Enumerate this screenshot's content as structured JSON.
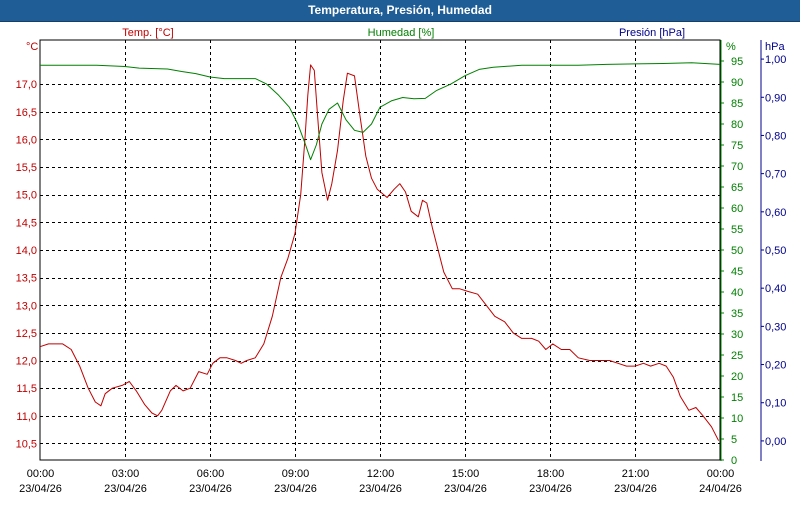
{
  "window": {
    "title": "Temperatura, Presión, Humedad"
  },
  "chart_data": {
    "type": "line",
    "title": "Temperatura, Presión, Humedad",
    "x_ticks": [
      {
        "time": "00:00",
        "date": "23/04/26"
      },
      {
        "time": "03:00",
        "date": "23/04/26"
      },
      {
        "time": "06:00",
        "date": "23/04/26"
      },
      {
        "time": "09:00",
        "date": "23/04/26"
      },
      {
        "time": "12:00",
        "date": "23/04/26"
      },
      {
        "time": "15:00",
        "date": "23/04/26"
      },
      {
        "time": "18:00",
        "date": "23/04/26"
      },
      {
        "time": "21:00",
        "date": "23/04/26"
      },
      {
        "time": "00:00",
        "date": "24/04/26"
      }
    ],
    "x_range_hours": [
      0,
      24
    ],
    "axes": {
      "temp": {
        "label": "Temp. [°C]",
        "unit": "°C",
        "color": "#c00000",
        "range": [
          10.2,
          17.8
        ],
        "ticks": [
          "10,5",
          "11,0",
          "11,5",
          "12,0",
          "12,5",
          "13,0",
          "13,5",
          "14,0",
          "14,5",
          "15,0",
          "15,5",
          "16,0",
          "16,5",
          "17,0"
        ]
      },
      "humidity": {
        "label": "Humedad [%]",
        "unit": "%",
        "color": "#008000",
        "range": [
          0,
          100
        ],
        "ticks": [
          "0",
          "5",
          "10",
          "15",
          "20",
          "25",
          "30",
          "35",
          "40",
          "45",
          "50",
          "55",
          "60",
          "65",
          "70",
          "75",
          "80",
          "85",
          "90",
          "95"
        ]
      },
      "pressure": {
        "label": "Presión [hPa]",
        "unit": "hPa",
        "color": "#00008b",
        "range": [
          -0.05,
          1.05
        ],
        "ticks": [
          "0,00",
          "0,10",
          "0,20",
          "0,30",
          "0,40",
          "0,50",
          "0,60",
          "0,70",
          "0,80",
          "0,90",
          "1,00"
        ]
      }
    },
    "grid": true,
    "series": [
      {
        "name": "Temp. [°C]",
        "axis": "temp",
        "color": "#c00000",
        "points": [
          [
            0,
            12.25
          ],
          [
            0.3,
            12.3
          ],
          [
            0.8,
            12.3
          ],
          [
            1.1,
            12.2
          ],
          [
            1.4,
            11.9
          ],
          [
            1.7,
            11.5
          ],
          [
            1.95,
            11.25
          ],
          [
            2.15,
            11.18
          ],
          [
            2.3,
            11.4
          ],
          [
            2.55,
            11.5
          ],
          [
            2.9,
            11.55
          ],
          [
            3.15,
            11.62
          ],
          [
            3.4,
            11.45
          ],
          [
            3.7,
            11.2
          ],
          [
            3.95,
            11.05
          ],
          [
            4.15,
            11.0
          ],
          [
            4.3,
            11.1
          ],
          [
            4.6,
            11.45
          ],
          [
            4.8,
            11.55
          ],
          [
            5.05,
            11.45
          ],
          [
            5.3,
            11.5
          ],
          [
            5.6,
            11.8
          ],
          [
            5.9,
            11.75
          ],
          [
            6.1,
            11.95
          ],
          [
            6.35,
            12.05
          ],
          [
            6.6,
            12.05
          ],
          [
            6.9,
            12.0
          ],
          [
            7.1,
            11.95
          ],
          [
            7.3,
            12.0
          ],
          [
            7.6,
            12.05
          ],
          [
            7.9,
            12.3
          ],
          [
            8.2,
            12.8
          ],
          [
            8.5,
            13.5
          ],
          [
            8.75,
            13.85
          ],
          [
            9.0,
            14.3
          ],
          [
            9.2,
            15.0
          ],
          [
            9.35,
            16.0
          ],
          [
            9.45,
            16.8
          ],
          [
            9.55,
            17.35
          ],
          [
            9.68,
            17.25
          ],
          [
            9.8,
            16.4
          ],
          [
            9.95,
            15.4
          ],
          [
            10.15,
            14.9
          ],
          [
            10.3,
            15.2
          ],
          [
            10.5,
            15.8
          ],
          [
            10.7,
            16.7
          ],
          [
            10.85,
            17.2
          ],
          [
            11.1,
            17.15
          ],
          [
            11.3,
            16.4
          ],
          [
            11.5,
            15.7
          ],
          [
            11.7,
            15.3
          ],
          [
            11.9,
            15.1
          ],
          [
            12.25,
            14.95
          ],
          [
            12.5,
            15.1
          ],
          [
            12.7,
            15.2
          ],
          [
            12.9,
            15.05
          ],
          [
            13.1,
            14.7
          ],
          [
            13.35,
            14.6
          ],
          [
            13.5,
            14.9
          ],
          [
            13.65,
            14.85
          ],
          [
            13.85,
            14.4
          ],
          [
            14.05,
            14.0
          ],
          [
            14.25,
            13.6
          ],
          [
            14.55,
            13.3
          ],
          [
            14.8,
            13.3
          ],
          [
            15.1,
            13.25
          ],
          [
            15.45,
            13.2
          ],
          [
            15.75,
            13.0
          ],
          [
            16.05,
            12.8
          ],
          [
            16.4,
            12.7
          ],
          [
            16.7,
            12.5
          ],
          [
            17.0,
            12.4
          ],
          [
            17.35,
            12.4
          ],
          [
            17.6,
            12.35
          ],
          [
            17.85,
            12.2
          ],
          [
            18.1,
            12.3
          ],
          [
            18.4,
            12.2
          ],
          [
            18.7,
            12.2
          ],
          [
            19.0,
            12.05
          ],
          [
            19.4,
            12.0
          ],
          [
            19.7,
            12.0
          ],
          [
            20.1,
            12.0
          ],
          [
            20.4,
            11.95
          ],
          [
            20.7,
            11.9
          ],
          [
            21.0,
            11.9
          ],
          [
            21.3,
            11.95
          ],
          [
            21.55,
            11.9
          ],
          [
            21.85,
            11.95
          ],
          [
            22.1,
            11.9
          ],
          [
            22.35,
            11.7
          ],
          [
            22.6,
            11.35
          ],
          [
            22.9,
            11.1
          ],
          [
            23.15,
            11.15
          ],
          [
            23.4,
            11.0
          ],
          [
            23.7,
            10.8
          ],
          [
            23.95,
            10.55
          ]
        ]
      },
      {
        "name": "Humedad [%]",
        "axis": "humidity",
        "color": "#008000",
        "points": [
          [
            0,
            94
          ],
          [
            1,
            94
          ],
          [
            2,
            94
          ],
          [
            3,
            93.7
          ],
          [
            3.5,
            93.3
          ],
          [
            4.5,
            93.1
          ],
          [
            5,
            92.5
          ],
          [
            5.5,
            92
          ],
          [
            6,
            91.2
          ],
          [
            6.5,
            90.8
          ],
          [
            7,
            90.8
          ],
          [
            7.6,
            90.8
          ],
          [
            8,
            89.5
          ],
          [
            8.4,
            87
          ],
          [
            8.8,
            84
          ],
          [
            9.1,
            80
          ],
          [
            9.35,
            75.5
          ],
          [
            9.55,
            71.5
          ],
          [
            9.75,
            75
          ],
          [
            9.95,
            80
          ],
          [
            10.2,
            83.5
          ],
          [
            10.5,
            85
          ],
          [
            10.8,
            81
          ],
          [
            11.1,
            78.5
          ],
          [
            11.4,
            78
          ],
          [
            11.7,
            80
          ],
          [
            12.0,
            84
          ],
          [
            12.4,
            85.5
          ],
          [
            12.8,
            86.3
          ],
          [
            13.2,
            86.0
          ],
          [
            13.6,
            86.1
          ],
          [
            14.0,
            88
          ],
          [
            14.5,
            89.5
          ],
          [
            15.0,
            91.5
          ],
          [
            15.5,
            93
          ],
          [
            16,
            93.5
          ],
          [
            17,
            94
          ],
          [
            18,
            94
          ],
          [
            19,
            94
          ],
          [
            20,
            94.2
          ],
          [
            21,
            94.3
          ],
          [
            22,
            94.4
          ],
          [
            23,
            94.6
          ],
          [
            24,
            94.2
          ]
        ]
      }
    ]
  }
}
